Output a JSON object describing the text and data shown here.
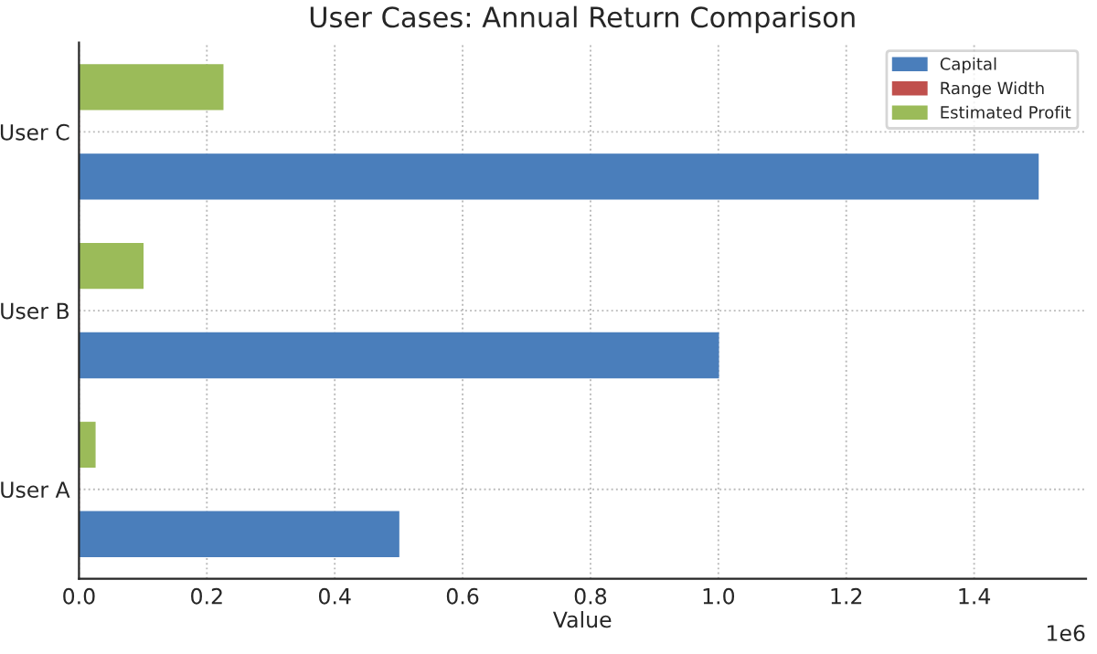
{
  "chart_data": {
    "type": "bar",
    "orientation": "horizontal",
    "title": "User Cases: Annual Return Comparison",
    "xlabel": "Value",
    "categories": [
      "User C",
      "User B",
      "User A"
    ],
    "series": [
      {
        "name": "Capital",
        "color": "#4a7ebb",
        "values": [
          1.5,
          1.0,
          0.5
        ]
      },
      {
        "name": "Range Width",
        "color": "#c0504d",
        "values": [
          0,
          0,
          0
        ]
      },
      {
        "name": "Estimated Profit",
        "color": "#9bbb59",
        "values": [
          0.225,
          0.1,
          0.025
        ]
      }
    ],
    "xlim": [
      0,
      1.575
    ],
    "xticks": [
      {
        "value": 0,
        "label": "0.0"
      },
      0.2,
      0.4,
      0.6,
      0.8,
      {
        "value": 1,
        "label": "1.0"
      },
      1.2,
      1.4
    ],
    "annotations": [
      "1e6"
    ],
    "grid": true,
    "legend": "top right"
  }
}
